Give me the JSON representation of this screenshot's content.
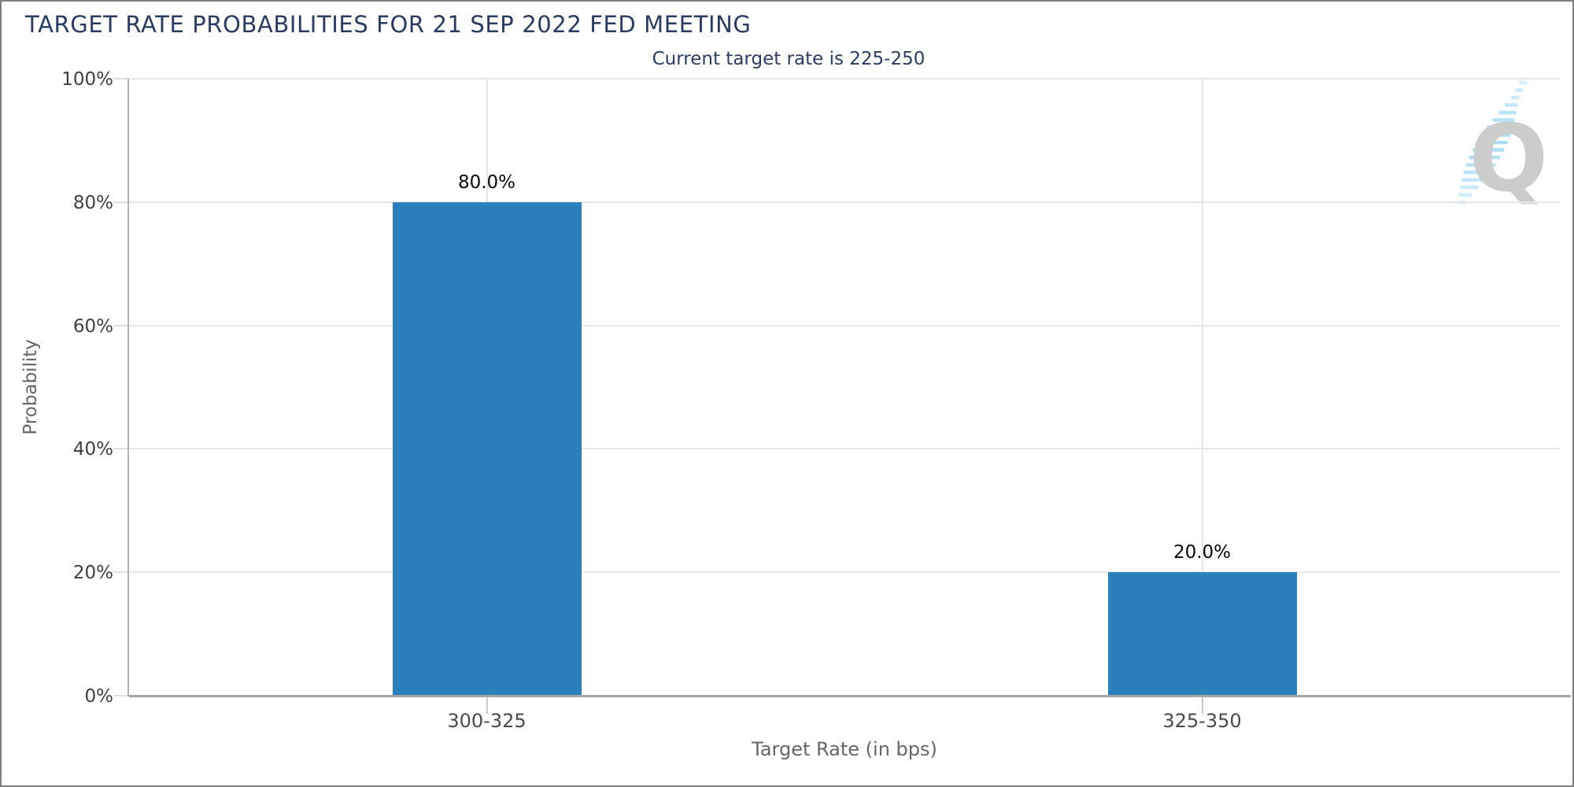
{
  "header": {
    "title": "TARGET RATE PROBABILITIES FOR 21 SEP 2022 FED MEETING",
    "subtitle": "Current target rate is 225-250"
  },
  "chart_data": {
    "type": "bar",
    "title": "TARGET RATE PROBABILITIES FOR 21 SEP 2022 FED MEETING",
    "subtitle": "Current target rate is 225-250",
    "categories": [
      "300-325",
      "325-350"
    ],
    "values": [
      80.0,
      20.0
    ],
    "value_labels": [
      "80.0%",
      "20.0%"
    ],
    "xlabel": "Target Rate (in bps)",
    "ylabel": "Probability",
    "ylim": [
      0,
      100
    ],
    "yticks": [
      0,
      20,
      40,
      60,
      80,
      100
    ],
    "ytick_labels": [
      "0%",
      "20%",
      "40%",
      "60%",
      "80%",
      "100%"
    ],
    "grid": true,
    "legend": "none",
    "bar_color": "#2a80ba"
  },
  "watermark": {
    "letter": "Q",
    "swoosh_color": "#9fd9f6",
    "letter_color": "#c7c7c7"
  },
  "colors": {
    "title_navy": "#2a3c63",
    "bar_blue": "#2a80ba",
    "grid_gray": "#e6e6e6",
    "axis_gray": "#a6a6a6"
  }
}
